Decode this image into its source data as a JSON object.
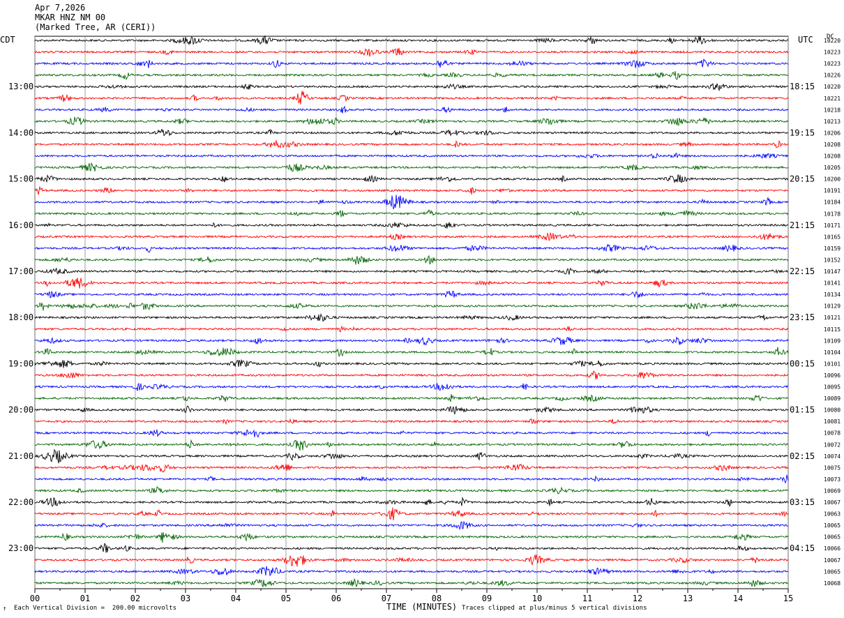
{
  "header": {
    "date": "Apr 7,2026",
    "station": "MKAR HNZ NM 00",
    "location": "(Marked Tree, AR (CERI))"
  },
  "left_tz": "CDT",
  "right_tz": "UTC",
  "dc_label": "DC",
  "footer": {
    "scale": "Each Vertical Division =  200.00 microvolts",
    "clip": "Traces clipped at plus/minus 5 vertical divisions"
  },
  "chart_data": {
    "type": "line",
    "xlabel": "TIME (MINUTES)",
    "xlim": [
      0,
      15
    ],
    "x_ticks": [
      "00",
      "01",
      "02",
      "03",
      "04",
      "05",
      "06",
      "07",
      "08",
      "09",
      "10",
      "11",
      "12",
      "13",
      "14",
      "15"
    ],
    "left_hour_labels": [
      "13:00",
      "14:00",
      "15:00",
      "16:00",
      "17:00",
      "18:00",
      "19:00",
      "20:00",
      "21:00",
      "22:00",
      "23:00"
    ],
    "right_hour_labels": [
      "18:15",
      "19:15",
      "20:15",
      "21:15",
      "22:15",
      "23:15",
      "00:15",
      "01:15",
      "02:15",
      "03:15",
      "04:15"
    ],
    "trace_colors": [
      "#000000",
      "#ff0000",
      "#0000ff",
      "#006400"
    ],
    "dc_values": [
      "10220",
      "10223",
      "10223",
      "10226",
      "10220",
      "10221",
      "10218",
      "10213",
      "10206",
      "10208",
      "10208",
      "10205",
      "10200",
      "10191",
      "10184",
      "10178",
      "10171",
      "10165",
      "10159",
      "10152",
      "10147",
      "10141",
      "10134",
      "10129",
      "10121",
      "10115",
      "10109",
      "10104",
      "10101",
      "10096",
      "10095",
      "10089",
      "10080",
      "10081",
      "10078",
      "10072",
      "10074",
      "10075",
      "10073",
      "10069",
      "10067",
      "10063",
      "10065",
      "10065",
      "10066",
      "10067",
      "10065",
      "10068"
    ]
  }
}
